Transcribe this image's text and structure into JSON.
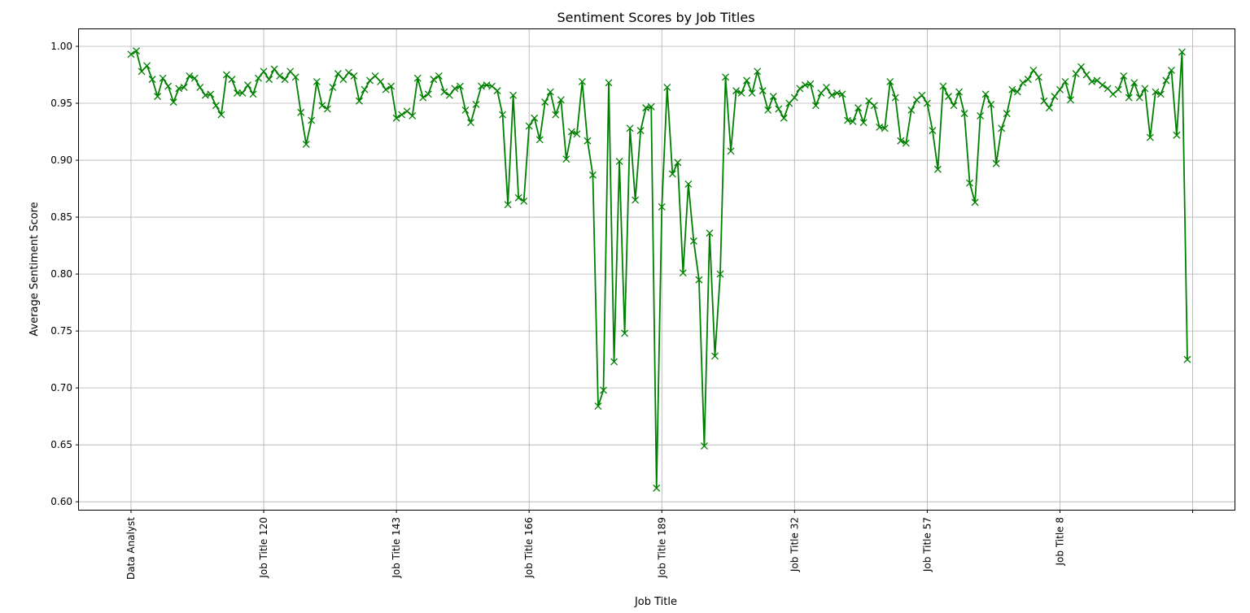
{
  "chart_data": {
    "type": "line",
    "title": "Sentiment Scores by Job Titles",
    "xlabel": "Job Title",
    "ylabel": "Average Sentiment Score",
    "ylim": [
      0.593,
      1.015
    ],
    "yticks": [
      0.6,
      0.65,
      0.7,
      0.75,
      0.8,
      0.85,
      0.9,
      0.95,
      1.0
    ],
    "ytick_labels": [
      "0.60",
      "0.65",
      "0.70",
      "0.75",
      "0.80",
      "0.85",
      "0.90",
      "0.95",
      "1.00"
    ],
    "xticks": [
      {
        "index": 0,
        "label": "Data Analyst"
      },
      {
        "index": 25,
        "label": "Job Title 120"
      },
      {
        "index": 50,
        "label": "Job Title 143"
      },
      {
        "index": 75,
        "label": "Job Title 166"
      },
      {
        "index": 100,
        "label": "Job Title 189"
      },
      {
        "index": 125,
        "label": "Job Title 32"
      },
      {
        "index": 150,
        "label": "Job Title 57"
      },
      {
        "index": 175,
        "label": "Job Title 8"
      },
      {
        "index": 200,
        "label": ""
      }
    ],
    "grid": true,
    "marker": "x",
    "color": "#008000",
    "series": [
      {
        "values": [
          0.993,
          0.996,
          0.978,
          0.983,
          0.971,
          0.956,
          0.972,
          0.965,
          0.951,
          0.963,
          0.964,
          0.974,
          0.972,
          0.964,
          0.957,
          0.958,
          0.948,
          0.94,
          0.975,
          0.971,
          0.959,
          0.959,
          0.966,
          0.958,
          0.972,
          0.978,
          0.971,
          0.98,
          0.974,
          0.971,
          0.978,
          0.973,
          0.942,
          0.914,
          0.935,
          0.969,
          0.948,
          0.945,
          0.964,
          0.976,
          0.971,
          0.977,
          0.974,
          0.952,
          0.962,
          0.97,
          0.974,
          0.969,
          0.962,
          0.965,
          0.937,
          0.94,
          0.943,
          0.939,
          0.972,
          0.955,
          0.958,
          0.971,
          0.974,
          0.96,
          0.957,
          0.963,
          0.965,
          0.944,
          0.933,
          0.949,
          0.965,
          0.966,
          0.965,
          0.961,
          0.94,
          0.861,
          0.957,
          0.867,
          0.864,
          0.93,
          0.937,
          0.918,
          0.951,
          0.96,
          0.94,
          0.953,
          0.901,
          0.925,
          0.923,
          0.969,
          0.917,
          0.887,
          0.684,
          0.698,
          0.968,
          0.723,
          0.899,
          0.748,
          0.928,
          0.865,
          0.926,
          0.946,
          0.947,
          0.612,
          0.859,
          0.964,
          0.888,
          0.898,
          0.801,
          0.879,
          0.829,
          0.795,
          0.649,
          0.836,
          0.728,
          0.8,
          0.973,
          0.908,
          0.961,
          0.959,
          0.97,
          0.959,
          0.978,
          0.961,
          0.944,
          0.956,
          0.945,
          0.937,
          0.95,
          0.955,
          0.963,
          0.966,
          0.967,
          0.948,
          0.959,
          0.964,
          0.957,
          0.959,
          0.958,
          0.935,
          0.934,
          0.946,
          0.933,
          0.952,
          0.948,
          0.929,
          0.928,
          0.969,
          0.955,
          0.917,
          0.915,
          0.944,
          0.953,
          0.957,
          0.95,
          0.926,
          0.892,
          0.965,
          0.956,
          0.948,
          0.96,
          0.941,
          0.88,
          0.863,
          0.939,
          0.958,
          0.949,
          0.897,
          0.928,
          0.941,
          0.962,
          0.96,
          0.968,
          0.971,
          0.979,
          0.973,
          0.952,
          0.946,
          0.956,
          0.962,
          0.969,
          0.953,
          0.976,
          0.982,
          0.975,
          0.969,
          0.97,
          0.966,
          0.963,
          0.958,
          0.962,
          0.974,
          0.955,
          0.968,
          0.955,
          0.963,
          0.92,
          0.96,
          0.958,
          0.97,
          0.979,
          0.922,
          0.995,
          0.725
        ]
      }
    ]
  }
}
